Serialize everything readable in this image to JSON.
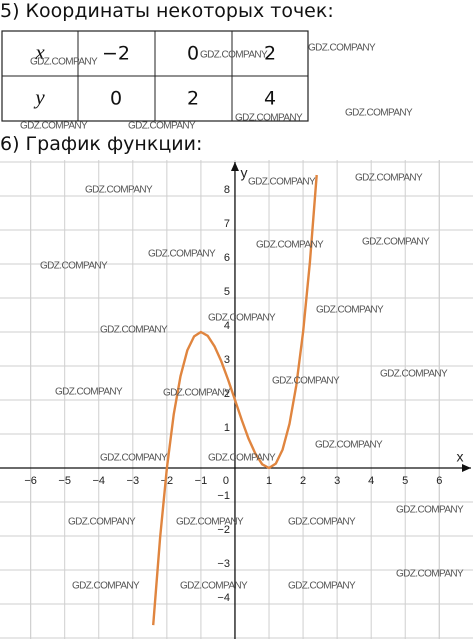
{
  "section5": {
    "heading": "5) Координаты некоторых точек:"
  },
  "table": {
    "rows": [
      [
        "x",
        "−2",
        "0",
        "2"
      ],
      [
        "y",
        "0",
        "2",
        "4"
      ]
    ]
  },
  "section6": {
    "heading": "6) График функции:"
  },
  "graph": {
    "type": "line",
    "xlabel": "x",
    "ylabel": "y",
    "color": "#e0853f",
    "x": [
      -2.4,
      -2.2,
      -2.0,
      -1.8,
      -1.6,
      -1.4,
      -1.2,
      -1.0,
      -0.8,
      -0.6,
      -0.4,
      -0.2,
      0,
      0.2,
      0.4,
      0.6,
      0.8,
      1.0,
      1.2,
      1.4,
      1.6,
      1.8,
      2.0,
      2.2,
      2.4
    ],
    "y": [
      -4.62,
      -2.05,
      0,
      1.57,
      2.7,
      3.46,
      3.87,
      4,
      3.89,
      3.58,
      3.14,
      2.59,
      2,
      1.41,
      0.86,
      0.42,
      0.11,
      0,
      0.13,
      0.54,
      1.3,
      2.43,
      4,
      6.05,
      8.62
    ],
    "xlim": [
      -6.9,
      6.99
    ],
    "ylim": [
      -5.03,
      9.06
    ],
    "xticks": [
      {
        "value": -6,
        "label": "−6"
      },
      {
        "value": -5,
        "label": "−5"
      },
      {
        "value": -4,
        "label": "−4"
      },
      {
        "value": -3,
        "label": "−3"
      },
      {
        "value": -2,
        "label": "−2"
      },
      {
        "value": -1,
        "label": "−1"
      },
      0,
      1,
      2,
      3,
      4,
      5,
      6
    ],
    "yticks": [
      {
        "value": -4,
        "label": "−4"
      },
      {
        "value": -3,
        "label": "−3"
      },
      {
        "value": -2,
        "label": "−2"
      },
      {
        "value": -1,
        "label": "−1"
      },
      1,
      2,
      3,
      4,
      5,
      6,
      7,
      8
    ]
  },
  "watermarks": [
    "GDZ.COMPANY",
    "GDZ.COMPANY",
    "GDZ.COMPANY",
    "GDZ.COMPANY",
    "GDZ.COMPANY",
    "GDZ.COMPANY",
    "GDZ.COMPANY",
    "GDZ.COMPANY",
    "GDZ.COMPANY",
    "GDZ.COMPANY",
    "GDZ.COMPANY",
    "GDZ.COMPANY",
    "GDZ.COMPANY",
    "GDZ.COMPANY",
    "GDZ.COMPANY",
    "GDZ.COMPANY",
    "GDZ.COMPANY",
    "GDZ.COMPANY",
    "GDZ.COMPANY",
    "GDZ.COMPANY",
    "GDZ.COMPANY",
    "GDZ.COMPANY",
    "GDZ.COMPANY",
    "GDZ.COMPANY",
    "GDZ.COMPANY",
    "GDZ.COMPANY",
    "GDZ.COMPANY",
    "GDZ.COMPANY",
    "GDZ.COMPANY",
    "GDZ.COMPANY",
    "GDZ.COMPANY",
    "GDZ.COMPANY"
  ]
}
